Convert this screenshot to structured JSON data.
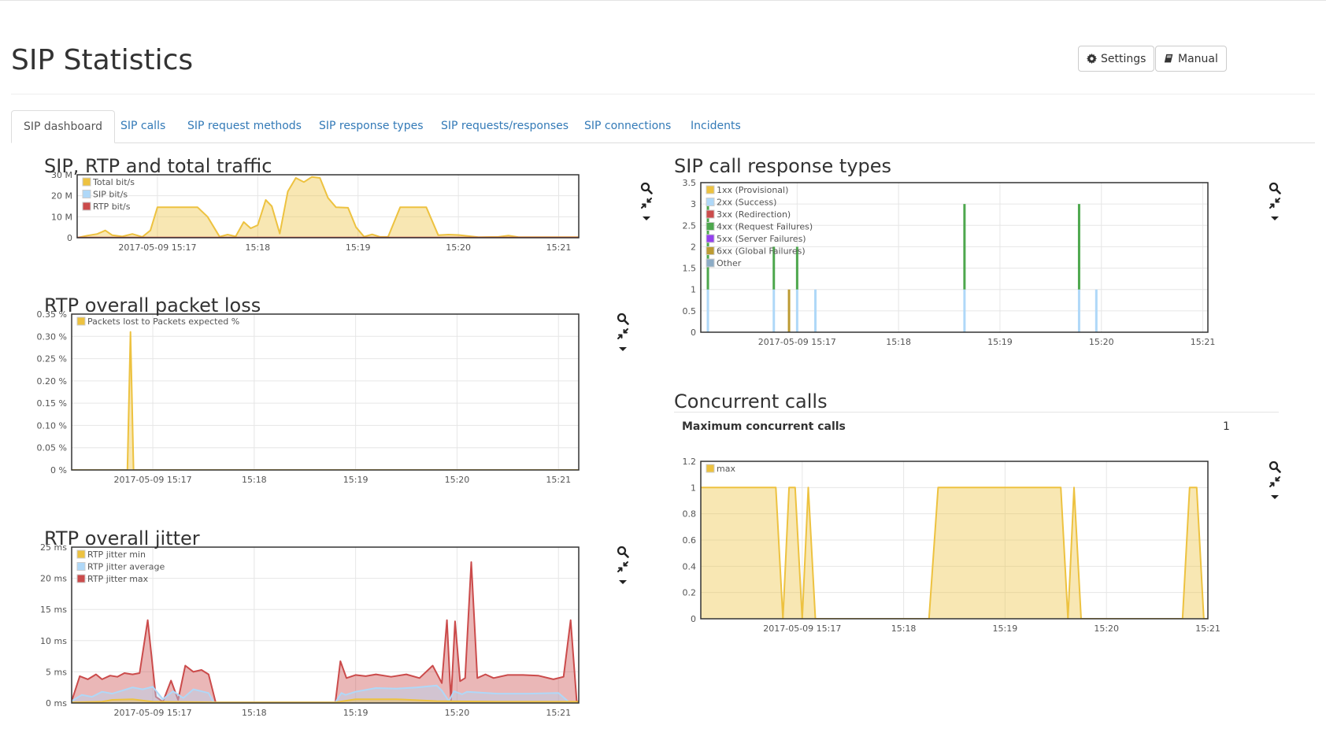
{
  "page": {
    "title": "SIP Statistics"
  },
  "toolbar": {
    "settings_label": "Settings",
    "manual_label": "Manual"
  },
  "tabs": [
    {
      "label": "SIP dashboard",
      "active": true
    },
    {
      "label": "SIP calls"
    },
    {
      "label": "SIP request methods"
    },
    {
      "label": "SIP response types"
    },
    {
      "label": "SIP requests/responses"
    },
    {
      "label": "SIP connections"
    },
    {
      "label": "Incidents"
    }
  ],
  "concurrent": {
    "title": "Concurrent calls",
    "max_label": "Maximum concurrent calls",
    "max_value": "1"
  },
  "colors": {
    "yellow": "#edc240",
    "light_blue": "#afd8f8",
    "red": "#cb4b4b",
    "green": "#4da74d",
    "purple": "#9440ed",
    "olive": "#bd9b33",
    "gray_blue": "#8cacc6"
  },
  "chart_data": [
    {
      "id": "traffic",
      "title": "SIP, RTP and total traffic",
      "type": "area",
      "x_ticks": [
        "2017-05-09 15:17",
        "15:18",
        "15:19",
        "15:20",
        "15:21"
      ],
      "x_tick_pos": [
        1,
        2,
        3,
        4,
        5
      ],
      "xlim": [
        0.2,
        5.2
      ],
      "y_ticks": [
        "0",
        "10 M",
        "20 M",
        "30 M"
      ],
      "y_tick_vals": [
        0,
        10,
        20,
        30
      ],
      "ylim": [
        0,
        30
      ],
      "legend": "top-left",
      "series": [
        {
          "name": "Total bit/s",
          "color": "#edc240",
          "points": [
            [
              0.2,
              0
            ],
            [
              0.3,
              1
            ],
            [
              0.4,
              1.8
            ],
            [
              0.48,
              3.5
            ],
            [
              0.55,
              1.2
            ],
            [
              0.65,
              0.6
            ],
            [
              0.75,
              1.8
            ],
            [
              0.85,
              0.4
            ],
            [
              0.93,
              3.5
            ],
            [
              1.0,
              14.5
            ],
            [
              1.2,
              14.5
            ],
            [
              1.4,
              14.5
            ],
            [
              1.5,
              10
            ],
            [
              1.62,
              0.5
            ],
            [
              1.7,
              1.5
            ],
            [
              1.78,
              0.6
            ],
            [
              1.86,
              7.5
            ],
            [
              1.93,
              4.5
            ],
            [
              2.0,
              6
            ],
            [
              2.08,
              18
            ],
            [
              2.14,
              15
            ],
            [
              2.22,
              2
            ],
            [
              2.3,
              22
            ],
            [
              2.38,
              28.5
            ],
            [
              2.46,
              26.5
            ],
            [
              2.54,
              29
            ],
            [
              2.62,
              28.5
            ],
            [
              2.7,
              19
            ],
            [
              2.78,
              14.5
            ],
            [
              2.9,
              14.3
            ],
            [
              2.98,
              5
            ],
            [
              3.06,
              0.5
            ],
            [
              3.14,
              1.6
            ],
            [
              3.22,
              0.4
            ],
            [
              3.3,
              0.5
            ],
            [
              3.42,
              14.5
            ],
            [
              3.55,
              14.5
            ],
            [
              3.68,
              14.5
            ],
            [
              3.8,
              1.2
            ],
            [
              3.9,
              1.5
            ],
            [
              4.0,
              1.3
            ],
            [
              4.2,
              0.3
            ],
            [
              4.4,
              0.4
            ],
            [
              4.5,
              1.0
            ],
            [
              4.6,
              0.3
            ],
            [
              4.8,
              0.3
            ],
            [
              5.2,
              0.3
            ]
          ]
        },
        {
          "name": "SIP bit/s",
          "color": "#afd8f8",
          "points": [
            [
              0.2,
              0
            ],
            [
              5.2,
              0
            ]
          ]
        },
        {
          "name": "RTP bit/s",
          "color": "#cb4b4b",
          "points": [
            [
              0.2,
              0.1
            ],
            [
              5.2,
              0.1
            ]
          ]
        }
      ]
    },
    {
      "id": "packet_loss",
      "title": "RTP overall packet loss",
      "type": "area",
      "x_ticks": [
        "2017-05-09 15:17",
        "15:18",
        "15:19",
        "15:20",
        "15:21"
      ],
      "x_tick_pos": [
        1,
        2,
        3,
        4,
        5
      ],
      "xlim": [
        0.2,
        5.2
      ],
      "y_ticks": [
        "0 %",
        "0.05 %",
        "0.10 %",
        "0.15 %",
        "0.20 %",
        "0.25 %",
        "0.30 %",
        "0.35 %"
      ],
      "y_tick_vals": [
        0,
        0.05,
        0.1,
        0.15,
        0.2,
        0.25,
        0.3,
        0.35
      ],
      "ylim": [
        0,
        0.35
      ],
      "legend": "top-left",
      "series": [
        {
          "name": "Packets lost to Packets expected %",
          "color": "#edc240",
          "points": [
            [
              0.2,
              0
            ],
            [
              0.75,
              0
            ],
            [
              0.78,
              0.31
            ],
            [
              0.81,
              0
            ],
            [
              5.2,
              0
            ]
          ]
        }
      ]
    },
    {
      "id": "jitter",
      "title": "RTP overall jitter",
      "type": "area",
      "x_ticks": [
        "2017-05-09 15:17",
        "15:18",
        "15:19",
        "15:20",
        "15:21"
      ],
      "x_tick_pos": [
        1,
        2,
        3,
        4,
        5
      ],
      "xlim": [
        0.2,
        5.2
      ],
      "y_ticks": [
        "0 ms",
        "5 ms",
        "10 ms",
        "15 ms",
        "20 ms",
        "25 ms"
      ],
      "y_tick_vals": [
        0,
        5,
        10,
        15,
        20,
        25
      ],
      "ylim": [
        0,
        25
      ],
      "legend": "top-left",
      "series": [
        {
          "name": "RTP jitter min",
          "color": "#edc240",
          "points": [
            [
              0.2,
              0.1
            ],
            [
              0.5,
              0.2
            ],
            [
              0.6,
              0.5
            ],
            [
              0.8,
              0.6
            ],
            [
              1.0,
              0.2
            ],
            [
              1.6,
              0.1
            ],
            [
              2.8,
              0.1
            ],
            [
              3.0,
              0.6
            ],
            [
              3.4,
              0.6
            ],
            [
              3.8,
              0.3
            ],
            [
              4.4,
              0.2
            ],
            [
              5.2,
              0.2
            ]
          ]
        },
        {
          "name": "RTP jitter average",
          "color": "#afd8f8",
          "points": [
            [
              0.2,
              0.3
            ],
            [
              0.3,
              1.3
            ],
            [
              0.4,
              1.0
            ],
            [
              0.5,
              1.8
            ],
            [
              0.6,
              1.5
            ],
            [
              0.7,
              2.0
            ],
            [
              0.8,
              2.5
            ],
            [
              0.9,
              2.2
            ],
            [
              1.0,
              2.6
            ],
            [
              1.1,
              0.6
            ],
            [
              1.2,
              1.9
            ],
            [
              1.3,
              0.8
            ],
            [
              1.4,
              2.2
            ],
            [
              1.5,
              1.8
            ],
            [
              1.55,
              1.6
            ],
            [
              1.6,
              0.1
            ],
            [
              2.8,
              0.1
            ],
            [
              2.86,
              1.6
            ],
            [
              2.9,
              1.3
            ],
            [
              3.0,
              1.8
            ],
            [
              3.2,
              2.4
            ],
            [
              3.4,
              2.3
            ],
            [
              3.6,
              2.5
            ],
            [
              3.8,
              2.8
            ],
            [
              3.85,
              2.0
            ],
            [
              3.92,
              0.3
            ],
            [
              3.97,
              1.9
            ],
            [
              4.05,
              1.4
            ],
            [
              4.1,
              1.8
            ],
            [
              4.4,
              1.5
            ],
            [
              4.7,
              1.5
            ],
            [
              5.0,
              1.6
            ],
            [
              5.1,
              0.2
            ],
            [
              5.2,
              0.1
            ]
          ]
        },
        {
          "name": "RTP jitter max",
          "color": "#cb4b4b",
          "points": [
            [
              0.2,
              0.3
            ],
            [
              0.28,
              4.3
            ],
            [
              0.36,
              3.8
            ],
            [
              0.44,
              4.6
            ],
            [
              0.5,
              3.8
            ],
            [
              0.58,
              4.4
            ],
            [
              0.65,
              4.2
            ],
            [
              0.72,
              4.8
            ],
            [
              0.8,
              4.6
            ],
            [
              0.87,
              4.8
            ],
            [
              0.95,
              13.3
            ],
            [
              1.03,
              1.0
            ],
            [
              1.1,
              0.2
            ],
            [
              1.18,
              3.6
            ],
            [
              1.25,
              0.5
            ],
            [
              1.32,
              6.0
            ],
            [
              1.4,
              5.0
            ],
            [
              1.48,
              5.3
            ],
            [
              1.55,
              4.6
            ],
            [
              1.62,
              0.1
            ],
            [
              2.8,
              0.1
            ],
            [
              2.85,
              6.7
            ],
            [
              2.91,
              4.0
            ],
            [
              3.0,
              4.5
            ],
            [
              3.1,
              4.3
            ],
            [
              3.2,
              4.6
            ],
            [
              3.35,
              4.2
            ],
            [
              3.5,
              4.6
            ],
            [
              3.63,
              4.0
            ],
            [
              3.76,
              6.0
            ],
            [
              3.85,
              3.2
            ],
            [
              3.9,
              13.3
            ],
            [
              3.94,
              0.3
            ],
            [
              3.98,
              13.1
            ],
            [
              4.03,
              3.5
            ],
            [
              4.08,
              4.0
            ],
            [
              4.14,
              22.6
            ],
            [
              4.2,
              4.0
            ],
            [
              4.28,
              4.6
            ],
            [
              4.36,
              4.0
            ],
            [
              4.5,
              4.5
            ],
            [
              4.65,
              4.5
            ],
            [
              4.8,
              4.4
            ],
            [
              4.95,
              3.8
            ],
            [
              5.05,
              4.2
            ],
            [
              5.12,
              13.3
            ],
            [
              5.18,
              0.3
            ],
            [
              5.2,
              0.2
            ]
          ]
        }
      ]
    },
    {
      "id": "response_types",
      "title": "SIP call response types",
      "type": "bar",
      "x_ticks": [
        "2017-05-09 15:17",
        "15:18",
        "15:19",
        "15:20",
        "15:21"
      ],
      "x_tick_pos": [
        1,
        2,
        3,
        4,
        5
      ],
      "xlim": [
        0.05,
        5.05
      ],
      "y_ticks": [
        "0",
        "0.5",
        "1",
        "1.5",
        "2",
        "2.5",
        "3",
        "3.5"
      ],
      "y_tick_vals": [
        0,
        0.5,
        1,
        1.5,
        2,
        2.5,
        3,
        3.5
      ],
      "ylim": [
        0,
        3.5
      ],
      "legend": "top-left",
      "legend_entries": [
        {
          "name": "1xx (Provisional)",
          "color": "#edc240"
        },
        {
          "name": "2xx (Success)",
          "color": "#afd8f8"
        },
        {
          "name": "3xx (Redirection)",
          "color": "#cb4b4b"
        },
        {
          "name": "4xx (Request Failures)",
          "color": "#4da74d"
        },
        {
          "name": "5xx (Server Failures)",
          "color": "#9440ed"
        },
        {
          "name": "6xx (Global Failures)",
          "color": "#bd9b33"
        },
        {
          "name": "Other",
          "color": "#8cacc6"
        }
      ],
      "bars": [
        {
          "x": 0.12,
          "segments": [
            {
              "series": "2xx (Success)",
              "from": 0,
              "to": 1
            },
            {
              "series": "4xx (Request Failures)",
              "from": 1,
              "to": 3
            }
          ]
        },
        {
          "x": 0.77,
          "segments": [
            {
              "series": "2xx (Success)",
              "from": 0,
              "to": 1
            },
            {
              "series": "4xx (Request Failures)",
              "from": 1,
              "to": 2
            }
          ]
        },
        {
          "x": 0.92,
          "segments": [
            {
              "series": "6xx (Global Failures)",
              "from": 0,
              "to": 1
            }
          ]
        },
        {
          "x": 1.0,
          "segments": [
            {
              "series": "2xx (Success)",
              "from": 0,
              "to": 1
            },
            {
              "series": "4xx (Request Failures)",
              "from": 1,
              "to": 2
            }
          ]
        },
        {
          "x": 1.18,
          "segments": [
            {
              "series": "2xx (Success)",
              "from": 0,
              "to": 1
            }
          ]
        },
        {
          "x": 2.65,
          "segments": [
            {
              "series": "2xx (Success)",
              "from": 0,
              "to": 1
            },
            {
              "series": "4xx (Request Failures)",
              "from": 1,
              "to": 3
            }
          ]
        },
        {
          "x": 3.78,
          "segments": [
            {
              "series": "2xx (Success)",
              "from": 0,
              "to": 1
            },
            {
              "series": "4xx (Request Failures)",
              "from": 1,
              "to": 3
            }
          ]
        },
        {
          "x": 3.95,
          "segments": [
            {
              "series": "2xx (Success)",
              "from": 0,
              "to": 1
            }
          ]
        },
        {
          "x": 5.07,
          "segments": [
            {
              "series": "2xx (Success)",
              "from": 0,
              "to": 1
            },
            {
              "series": "4xx (Request Failures)",
              "from": 1,
              "to": 3
            }
          ]
        },
        {
          "x": 5.19,
          "segments": [
            {
              "series": "6xx (Global Failures)",
              "from": 0,
              "to": 1
            }
          ]
        }
      ]
    },
    {
      "id": "concurrent_calls",
      "title": "",
      "type": "area",
      "x_ticks": [
        "2017-05-09 15:17",
        "15:18",
        "15:19",
        "15:20",
        "15:21"
      ],
      "x_tick_pos": [
        1,
        2,
        3,
        4,
        5
      ],
      "xlim": [
        0.0,
        5.0
      ],
      "y_ticks": [
        "0",
        "0.2",
        "0.4",
        "0.6",
        "0.8",
        "1",
        "1.2"
      ],
      "y_tick_vals": [
        0,
        0.2,
        0.4,
        0.6,
        0.8,
        1,
        1.2
      ],
      "ylim": [
        0,
        1.2
      ],
      "legend": "top-left",
      "series": [
        {
          "name": "max",
          "color": "#edc240",
          "points": [
            [
              0.0,
              1
            ],
            [
              0.74,
              1
            ],
            [
              0.81,
              0
            ],
            [
              0.87,
              1
            ],
            [
              0.93,
              1
            ],
            [
              1.0,
              0
            ],
            [
              1.06,
              1
            ],
            [
              1.13,
              0
            ],
            [
              2.25,
              0
            ],
            [
              2.34,
              1
            ],
            [
              3.55,
              1
            ],
            [
              3.62,
              0
            ],
            [
              3.68,
              1
            ],
            [
              3.75,
              0
            ],
            [
              4.75,
              0
            ],
            [
              4.82,
              1
            ],
            [
              4.89,
              1
            ],
            [
              4.96,
              0
            ],
            [
              5.0,
              0
            ]
          ]
        }
      ]
    }
  ]
}
